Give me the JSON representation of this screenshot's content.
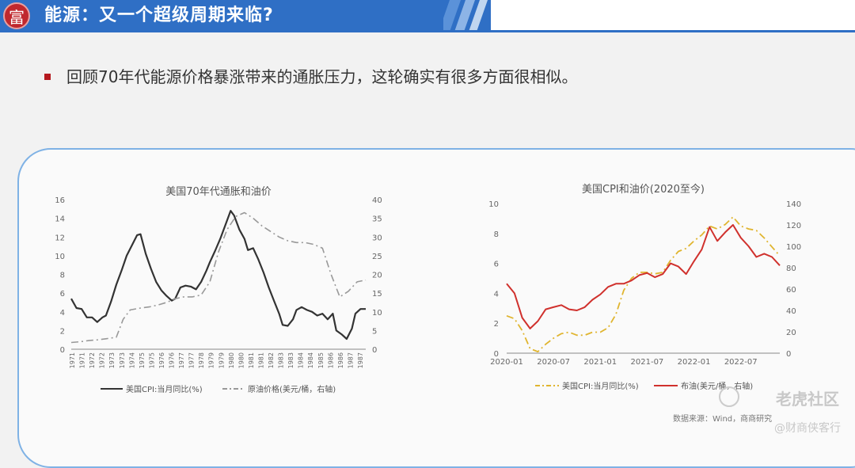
{
  "header": {
    "logo_glyph": "富",
    "title": "能源：又一个超级周期来临?"
  },
  "bullet": {
    "text": "回顾70年代能源价格暴涨带来的通胀压力，这轮确实有很多方面很相似。"
  },
  "chart_data": [
    {
      "type": "line",
      "title": "美国70年代通胀和油价",
      "x_ticks": [
        "1971",
        "1971",
        "1972",
        "1972",
        "1973",
        "1973",
        "1974",
        "1975",
        "1975",
        "1976",
        "1976",
        "1977",
        "1977",
        "1978",
        "1979",
        "1979",
        "1980",
        "1980",
        "1981",
        "1981",
        "1982",
        "1983",
        "1983",
        "1984",
        "1984",
        "1985",
        "1986",
        "1986",
        "1987",
        "1987"
      ],
      "left_axis": {
        "min": 0,
        "max": 16,
        "ticks": [
          0,
          2,
          4,
          6,
          8,
          10,
          12,
          14,
          16
        ]
      },
      "right_axis": {
        "min": 0,
        "max": 40,
        "ticks": [
          0,
          5,
          10,
          15,
          20,
          25,
          30,
          35,
          40
        ]
      },
      "grid": false,
      "legend_position": "bottom",
      "series": [
        {
          "name": "美国CPI:当月同比(%)",
          "axis": "left",
          "color": "#333333",
          "style": "solid",
          "points": [
            [
              1971.0,
              5.4
            ],
            [
              1971.3,
              4.4
            ],
            [
              1971.6,
              4.3
            ],
            [
              1971.9,
              3.4
            ],
            [
              1972.2,
              3.4
            ],
            [
              1972.5,
              2.9
            ],
            [
              1972.8,
              3.4
            ],
            [
              1973.0,
              3.6
            ],
            [
              1973.3,
              5.1
            ],
            [
              1973.6,
              6.9
            ],
            [
              1973.9,
              8.4
            ],
            [
              1974.2,
              10.0
            ],
            [
              1974.5,
              11.1
            ],
            [
              1974.8,
              12.2
            ],
            [
              1975.0,
              12.3
            ],
            [
              1975.3,
              10.2
            ],
            [
              1975.6,
              8.6
            ],
            [
              1975.9,
              7.2
            ],
            [
              1976.2,
              6.3
            ],
            [
              1976.5,
              5.7
            ],
            [
              1976.8,
              5.2
            ],
            [
              1977.0,
              5.4
            ],
            [
              1977.3,
              6.6
            ],
            [
              1977.6,
              6.8
            ],
            [
              1977.9,
              6.7
            ],
            [
              1978.2,
              6.4
            ],
            [
              1978.5,
              7.2
            ],
            [
              1978.8,
              8.4
            ],
            [
              1979.0,
              9.3
            ],
            [
              1979.3,
              10.5
            ],
            [
              1979.6,
              11.8
            ],
            [
              1979.9,
              13.3
            ],
            [
              1980.2,
              14.8
            ],
            [
              1980.4,
              14.3
            ],
            [
              1980.7,
              12.8
            ],
            [
              1981.0,
              11.8
            ],
            [
              1981.2,
              10.6
            ],
            [
              1981.5,
              10.8
            ],
            [
              1981.8,
              9.6
            ],
            [
              1982.1,
              8.2
            ],
            [
              1982.4,
              6.6
            ],
            [
              1982.7,
              5.2
            ],
            [
              1983.0,
              3.8
            ],
            [
              1983.2,
              2.6
            ],
            [
              1983.5,
              2.5
            ],
            [
              1983.8,
              3.2
            ],
            [
              1984.0,
              4.2
            ],
            [
              1984.3,
              4.5
            ],
            [
              1984.6,
              4.2
            ],
            [
              1984.9,
              4.0
            ],
            [
              1985.2,
              3.6
            ],
            [
              1985.5,
              3.8
            ],
            [
              1985.8,
              3.2
            ],
            [
              1986.1,
              3.8
            ],
            [
              1986.3,
              2.0
            ],
            [
              1986.6,
              1.6
            ],
            [
              1986.9,
              1.1
            ],
            [
              1987.2,
              2.2
            ],
            [
              1987.4,
              3.8
            ],
            [
              1987.7,
              4.3
            ],
            [
              1988.0,
              4.3
            ]
          ]
        },
        {
          "name": "原油价格(美元/桶，右轴)",
          "axis": "right",
          "color": "#999999",
          "style": "dashdot",
          "points": [
            [
              1971.0,
              1.8
            ],
            [
              1971.5,
              2.0
            ],
            [
              1972.0,
              2.3
            ],
            [
              1972.5,
              2.5
            ],
            [
              1973.0,
              2.8
            ],
            [
              1973.6,
              3.2
            ],
            [
              1974.0,
              8.0
            ],
            [
              1974.4,
              10.5
            ],
            [
              1975.0,
              11.0
            ],
            [
              1975.5,
              11.3
            ],
            [
              1976.0,
              11.8
            ],
            [
              1976.5,
              12.5
            ],
            [
              1977.0,
              13.5
            ],
            [
              1977.5,
              14.0
            ],
            [
              1978.0,
              14.0
            ],
            [
              1978.5,
              14.5
            ],
            [
              1979.0,
              18.0
            ],
            [
              1979.5,
              26.0
            ],
            [
              1980.0,
              32.0
            ],
            [
              1980.5,
              35.5
            ],
            [
              1981.0,
              36.5
            ],
            [
              1981.5,
              35.0
            ],
            [
              1982.0,
              33.0
            ],
            [
              1982.5,
              31.5
            ],
            [
              1983.0,
              30.0
            ],
            [
              1983.5,
              29.0
            ],
            [
              1984.0,
              28.5
            ],
            [
              1984.5,
              28.5
            ],
            [
              1985.0,
              28.0
            ],
            [
              1985.5,
              27.0
            ],
            [
              1986.0,
              20.0
            ],
            [
              1986.5,
              14.0
            ],
            [
              1987.0,
              15.5
            ],
            [
              1987.5,
              18.0
            ],
            [
              1988.0,
              18.5
            ]
          ]
        }
      ]
    },
    {
      "type": "line",
      "title": "美国CPI和油价(2020至今)",
      "x_ticks": [
        "2020-01",
        "2020-07",
        "2021-01",
        "2021-07",
        "2022-01",
        "2022-07"
      ],
      "left_axis": {
        "min": 0,
        "max": 10,
        "ticks": [
          0,
          2,
          4,
          6,
          8,
          10
        ]
      },
      "right_axis": {
        "min": 0,
        "max": 140,
        "ticks": [
          0,
          20,
          40,
          60,
          80,
          100,
          120,
          140
        ]
      },
      "grid": false,
      "legend_position": "bottom",
      "series": [
        {
          "name": "美国CPI:当月同比(%)",
          "axis": "left",
          "color": "#e0b530",
          "style": "dashdot",
          "points": [
            [
              "2020-01",
              2.5
            ],
            [
              "2020-02",
              2.3
            ],
            [
              "2020-03",
              1.5
            ],
            [
              "2020-04",
              0.3
            ],
            [
              "2020-05",
              0.1
            ],
            [
              "2020-06",
              0.6
            ],
            [
              "2020-07",
              1.0
            ],
            [
              "2020-08",
              1.3
            ],
            [
              "2020-09",
              1.4
            ],
            [
              "2020-10",
              1.2
            ],
            [
              "2020-11",
              1.2
            ],
            [
              "2020-12",
              1.4
            ],
            [
              "2021-01",
              1.4
            ],
            [
              "2021-02",
              1.7
            ],
            [
              "2021-03",
              2.6
            ],
            [
              "2021-04",
              4.2
            ],
            [
              "2021-05",
              5.0
            ],
            [
              "2021-06",
              5.4
            ],
            [
              "2021-07",
              5.4
            ],
            [
              "2021-08",
              5.3
            ],
            [
              "2021-09",
              5.4
            ],
            [
              "2021-10",
              6.2
            ],
            [
              "2021-11",
              6.8
            ],
            [
              "2021-12",
              7.0
            ],
            [
              "2022-01",
              7.5
            ],
            [
              "2022-02",
              7.9
            ],
            [
              "2022-03",
              8.5
            ],
            [
              "2022-04",
              8.3
            ],
            [
              "2022-05",
              8.6
            ],
            [
              "2022-06",
              9.1
            ],
            [
              "2022-07",
              8.5
            ],
            [
              "2022-08",
              8.3
            ],
            [
              "2022-09",
              8.2
            ],
            [
              "2022-10",
              7.7
            ],
            [
              "2022-11",
              7.1
            ],
            [
              "2022-12",
              6.5
            ]
          ]
        },
        {
          "name": "布油(美元/桶，右轴)",
          "axis": "right",
          "color": "#d0312d",
          "style": "solid",
          "points": [
            [
              "2020-01",
              65
            ],
            [
              "2020-02",
              56
            ],
            [
              "2020-03",
              33
            ],
            [
              "2020-04",
              23
            ],
            [
              "2020-05",
              30
            ],
            [
              "2020-06",
              41
            ],
            [
              "2020-07",
              43
            ],
            [
              "2020-08",
              45
            ],
            [
              "2020-09",
              41
            ],
            [
              "2020-10",
              40
            ],
            [
              "2020-11",
              43
            ],
            [
              "2020-12",
              50
            ],
            [
              "2021-01",
              55
            ],
            [
              "2021-02",
              62
            ],
            [
              "2021-03",
              65
            ],
            [
              "2021-04",
              65
            ],
            [
              "2021-05",
              68
            ],
            [
              "2021-06",
              73
            ],
            [
              "2021-07",
              75
            ],
            [
              "2021-08",
              71
            ],
            [
              "2021-09",
              74
            ],
            [
              "2021-10",
              84
            ],
            [
              "2021-11",
              81
            ],
            [
              "2021-12",
              74
            ],
            [
              "2022-01",
              86
            ],
            [
              "2022-02",
              97
            ],
            [
              "2022-03",
              118
            ],
            [
              "2022-04",
              105
            ],
            [
              "2022-05",
              113
            ],
            [
              "2022-06",
              120
            ],
            [
              "2022-07",
              108
            ],
            [
              "2022-08",
              100
            ],
            [
              "2022-09",
              90
            ],
            [
              "2022-10",
              93
            ],
            [
              "2022-11",
              90
            ],
            [
              "2022-12",
              82
            ]
          ]
        }
      ],
      "source": "数据来源：Wind，商商研究"
    }
  ],
  "watermark": {
    "brand": "老虎社区",
    "handle": "@财商侠客行"
  }
}
